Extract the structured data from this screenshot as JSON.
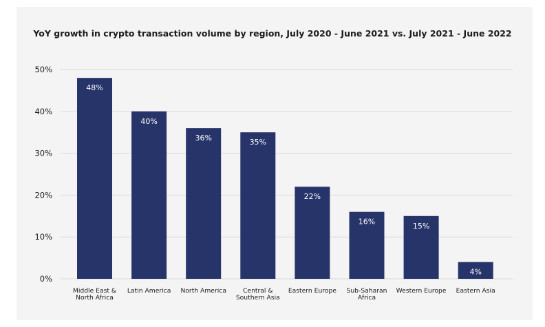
{
  "chart_data": {
    "type": "bar",
    "title": "YoY growth in crypto transaction volume by region, July 2020 - June 2021 vs. July 2021 - June 2022",
    "categories": [
      [
        "Middle East &",
        "North Africa"
      ],
      [
        "Latin America"
      ],
      [
        "North America"
      ],
      [
        "Central &",
        "Southern Asia"
      ],
      [
        "Eastern Europe"
      ],
      [
        "Sub-Saharan",
        "Africa"
      ],
      [
        "Western Europe"
      ],
      [
        "Eastern Asia"
      ]
    ],
    "values": [
      48,
      40,
      36,
      35,
      22,
      16,
      15,
      4
    ],
    "value_labels": [
      "48%",
      "40%",
      "36%",
      "35%",
      "22%",
      "16%",
      "15%",
      "4%"
    ],
    "yticks": [
      0,
      10,
      20,
      30,
      40,
      50
    ],
    "ytick_labels": [
      "0%",
      "10%",
      "20%",
      "30%",
      "40%",
      "50%"
    ],
    "ylim": [
      0,
      50
    ],
    "xlabel": "",
    "ylabel": "",
    "grid": true,
    "bar_color": "#27346a",
    "grid_color": "#d9d9d9",
    "label_color": "#ffffff"
  }
}
